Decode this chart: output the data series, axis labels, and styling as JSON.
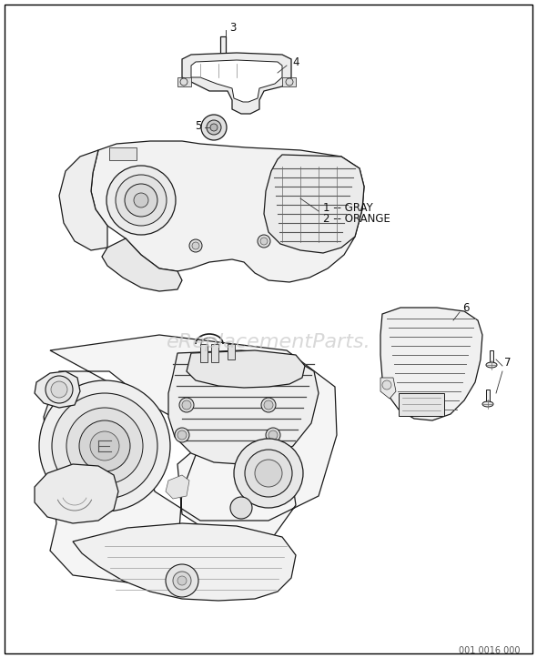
{
  "background_color": "#ffffff",
  "border_color": "#000000",
  "line_color": "#1a1a1a",
  "line_lw": 0.9,
  "thin_lw": 0.5,
  "watermark_text": "eReplacementParts.",
  "watermark_color": "#c8c8c8",
  "watermark_fontsize": 16,
  "part_code": "001 0016 000",
  "part_code_fontsize": 7,
  "label_1_text": "1 -- GRAY",
  "label_2_text": "2 -- ORANGE",
  "label_fontsize": 8.5,
  "callout_fontsize": 8.5
}
